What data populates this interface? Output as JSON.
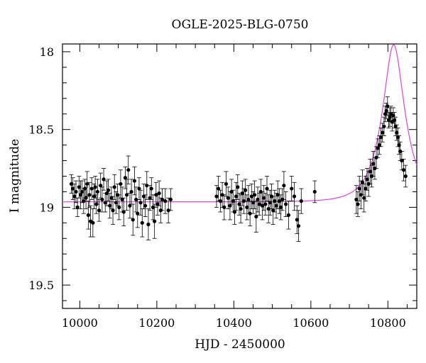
{
  "chart_data": {
    "type": "scatter",
    "title": "OGLE-2025-BLG-0750",
    "xlabel": "HJD - 2450000",
    "ylabel": "I magnitude",
    "xlim": [
      9955,
      10875
    ],
    "ylim": [
      19.65,
      17.95
    ],
    "y_inverted": true,
    "grid": false,
    "xticks": [
      10000,
      10200,
      10400,
      10600,
      10800
    ],
    "xtick_labels": [
      "10000",
      "10200",
      "10400",
      "10600",
      "10800"
    ],
    "x_minor_step": 50,
    "yticks": [
      18,
      18.5,
      19,
      19.5
    ],
    "ytick_labels": [
      "18",
      "18.5",
      "19",
      "19.5"
    ],
    "y_minor_step": 0.1,
    "colors": {
      "points": "#000000",
      "model": "#e040e0",
      "axes": "#000000"
    },
    "series": [
      {
        "points": [
          [
            9978,
            18.85,
            0.06
          ],
          [
            9982,
            18.88,
            0.07
          ],
          [
            9986,
            18.93,
            0.08
          ],
          [
            9990,
            18.9,
            0.07
          ],
          [
            9994,
            19.0,
            0.06
          ],
          [
            9998,
            18.87,
            0.07
          ],
          [
            10002,
            18.92,
            0.09
          ],
          [
            10006,
            18.9,
            0.07
          ],
          [
            10010,
            18.96,
            0.08
          ],
          [
            10013,
            18.88,
            0.06
          ],
          [
            10016,
            18.94,
            0.07
          ],
          [
            10019,
            18.85,
            0.08
          ],
          [
            10022,
            19.05,
            0.09
          ],
          [
            10025,
            18.92,
            0.08
          ],
          [
            10028,
            19.09,
            0.1
          ],
          [
            10031,
            18.88,
            0.07
          ],
          [
            10034,
            19.1,
            0.09
          ],
          [
            10037,
            18.93,
            0.08
          ],
          [
            10040,
            18.87,
            0.07
          ],
          [
            10043,
            18.98,
            0.06
          ],
          [
            10046,
            18.9,
            0.08
          ],
          [
            10050,
            19.02,
            0.07
          ],
          [
            10054,
            18.86,
            0.08
          ],
          [
            10058,
            18.95,
            0.08
          ],
          [
            10062,
            18.82,
            0.07
          ],
          [
            10066,
            18.97,
            0.06
          ],
          [
            10070,
            18.91,
            0.08
          ],
          [
            10074,
            18.89,
            0.07
          ],
          [
            10078,
            18.99,
            0.08
          ],
          [
            10082,
            18.94,
            0.07
          ],
          [
            10086,
            19.02,
            0.09
          ],
          [
            10090,
            18.87,
            0.08
          ],
          [
            10094,
            18.97,
            0.07
          ],
          [
            10098,
            18.92,
            0.07
          ],
          [
            10102,
            19.0,
            0.08
          ],
          [
            10106,
            18.85,
            0.09
          ],
          [
            10110,
            18.95,
            0.08
          ],
          [
            10114,
            19.03,
            0.09
          ],
          [
            10118,
            18.81,
            0.07
          ],
          [
            10122,
            18.92,
            0.1
          ],
          [
            10126,
            18.76,
            0.09
          ],
          [
            10130,
            18.99,
            0.08
          ],
          [
            10134,
            18.9,
            0.08
          ],
          [
            10138,
            19.08,
            0.1
          ],
          [
            10142,
            18.83,
            0.09
          ],
          [
            10146,
            18.95,
            0.08
          ],
          [
            10150,
            19.04,
            0.09
          ],
          [
            10154,
            18.88,
            0.07
          ],
          [
            10158,
            18.97,
            0.08
          ],
          [
            10162,
            19.1,
            0.09
          ],
          [
            10166,
            18.93,
            0.08
          ],
          [
            10170,
            18.99,
            0.07
          ],
          [
            10174,
            18.86,
            0.09
          ],
          [
            10178,
            19.11,
            0.1
          ],
          [
            10182,
            18.94,
            0.08
          ],
          [
            10186,
            18.88,
            0.07
          ],
          [
            10190,
            19.0,
            0.08
          ],
          [
            10194,
            19.09,
            0.11
          ],
          [
            10198,
            18.92,
            0.08
          ],
          [
            10202,
            18.98,
            0.07
          ],
          [
            10206,
            18.91,
            0.08
          ],
          [
            10210,
            19.02,
            0.08
          ],
          [
            10214,
            18.95,
            0.07
          ],
          [
            10222,
            18.96,
            0.08
          ],
          [
            10230,
            19.02,
            0.08
          ],
          [
            10236,
            18.95,
            0.07
          ],
          [
            10355,
            18.93,
            0.07
          ],
          [
            10360,
            18.88,
            0.08
          ],
          [
            10365,
            18.96,
            0.07
          ],
          [
            10370,
            18.92,
            0.08
          ],
          [
            10375,
            19.0,
            0.08
          ],
          [
            10380,
            18.85,
            0.08
          ],
          [
            10385,
            18.94,
            0.07
          ],
          [
            10390,
            18.99,
            0.09
          ],
          [
            10394,
            18.9,
            0.08
          ],
          [
            10398,
            18.96,
            0.07
          ],
          [
            10402,
            19.03,
            0.08
          ],
          [
            10406,
            18.93,
            0.09
          ],
          [
            10410,
            18.87,
            0.08
          ],
          [
            10414,
            18.98,
            0.07
          ],
          [
            10418,
            19.01,
            0.09
          ],
          [
            10422,
            18.91,
            0.08
          ],
          [
            10426,
            18.96,
            0.08
          ],
          [
            10430,
            18.89,
            0.07
          ],
          [
            10434,
            19.0,
            0.08
          ],
          [
            10438,
            18.95,
            0.09
          ],
          [
            10442,
            19.04,
            0.08
          ],
          [
            10446,
            18.93,
            0.08
          ],
          [
            10450,
            18.97,
            0.07
          ],
          [
            10454,
            18.92,
            0.09
          ],
          [
            10458,
            19.06,
            0.1
          ],
          [
            10462,
            18.95,
            0.08
          ],
          [
            10466,
            18.98,
            0.07
          ],
          [
            10470,
            18.9,
            0.08
          ],
          [
            10474,
            18.99,
            0.09
          ],
          [
            10478,
            18.94,
            0.08
          ],
          [
            10482,
            18.98,
            0.07
          ],
          [
            10486,
            18.88,
            0.08
          ],
          [
            10490,
            19.01,
            0.09
          ],
          [
            10494,
            18.97,
            0.08
          ],
          [
            10498,
            18.93,
            0.08
          ],
          [
            10502,
            19.02,
            0.09
          ],
          [
            10506,
            18.96,
            0.07
          ],
          [
            10510,
            18.99,
            0.08
          ],
          [
            10514,
            18.92,
            0.09
          ],
          [
            10518,
            18.96,
            0.08
          ],
          [
            10522,
            19.0,
            0.08
          ],
          [
            10526,
            18.95,
            0.07
          ],
          [
            10530,
            18.86,
            0.09
          ],
          [
            10535,
            18.98,
            0.08
          ],
          [
            10542,
            19.05,
            0.09
          ],
          [
            10550,
            18.88,
            0.08
          ],
          [
            10557,
            18.93,
            0.09
          ],
          [
            10564,
            19.08,
            0.09
          ],
          [
            10568,
            19.12,
            0.1
          ],
          [
            10575,
            18.96,
            0.08
          ],
          [
            10610,
            18.9,
            0.07
          ],
          [
            10718,
            18.95,
            0.09
          ],
          [
            10722,
            18.98,
            0.08
          ],
          [
            10726,
            18.88,
            0.08
          ],
          [
            10730,
            18.92,
            0.09
          ],
          [
            10734,
            18.84,
            0.08
          ],
          [
            10738,
            18.94,
            0.09
          ],
          [
            10742,
            18.88,
            0.08
          ],
          [
            10746,
            18.82,
            0.07
          ],
          [
            10750,
            18.85,
            0.08
          ],
          [
            10754,
            18.77,
            0.08
          ],
          [
            10758,
            18.8,
            0.07
          ],
          [
            10762,
            18.72,
            0.08
          ],
          [
            10766,
            18.75,
            0.07
          ],
          [
            10770,
            18.68,
            0.07
          ],
          [
            10774,
            18.62,
            0.06
          ],
          [
            10778,
            18.6,
            0.06
          ],
          [
            10782,
            18.55,
            0.06
          ],
          [
            10786,
            18.52,
            0.06
          ],
          [
            10790,
            18.48,
            0.06
          ],
          [
            10793,
            18.4,
            0.05
          ],
          [
            10796,
            18.38,
            0.05
          ],
          [
            10799,
            18.35,
            0.06
          ],
          [
            10802,
            18.44,
            0.05
          ],
          [
            10805,
            18.42,
            0.06
          ],
          [
            10808,
            18.4,
            0.05
          ],
          [
            10811,
            18.45,
            0.06
          ],
          [
            10814,
            18.41,
            0.05
          ],
          [
            10817,
            18.44,
            0.05
          ],
          [
            10820,
            18.48,
            0.06
          ],
          [
            10823,
            18.52,
            0.05
          ],
          [
            10826,
            18.55,
            0.06
          ],
          [
            10829,
            18.6,
            0.06
          ],
          [
            10832,
            18.64,
            0.06
          ],
          [
            10836,
            18.7,
            0.06
          ],
          [
            10841,
            18.76,
            0.07
          ],
          [
            10846,
            18.8,
            0.07
          ]
        ]
      }
    ]
  }
}
